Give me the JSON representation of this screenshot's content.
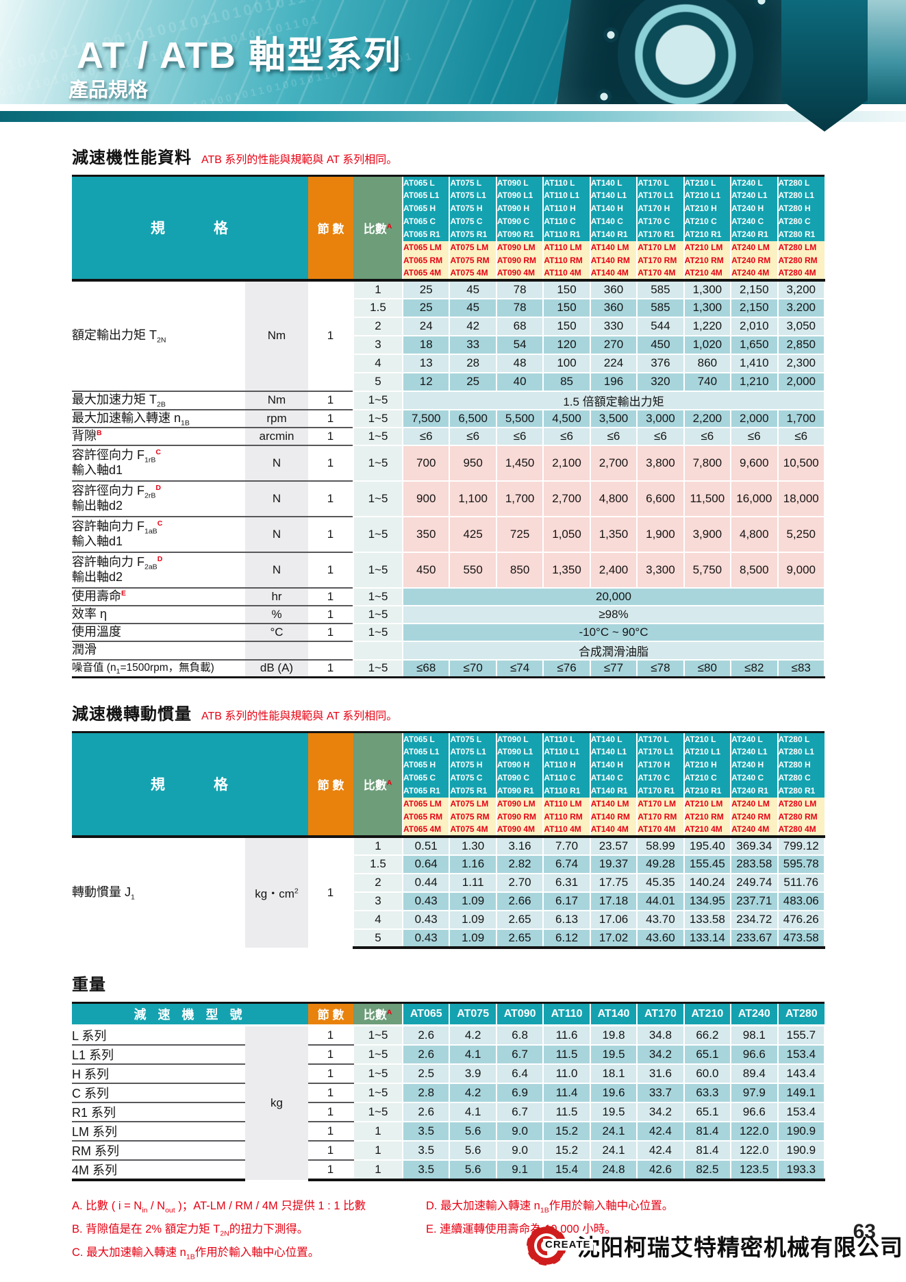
{
  "header": {
    "title": "AT / ATB 軸型系列",
    "subtitle": "產品規格",
    "pattern": "1010010110100101001011010010110100101101"
  },
  "colors": {
    "teal": "#14a2b0",
    "orange": "#e8820d",
    "green": "#6d9d79",
    "yellow": "#fbf1c3",
    "red": "#e60012",
    "row_light": "#d6e9ec",
    "row_dark": "#a8d5dc",
    "row_pink": "#f8dad6"
  },
  "models": [
    "AT065",
    "AT075",
    "AT090",
    "AT110",
    "AT140",
    "AT170",
    "AT210",
    "AT240",
    "AT280"
  ],
  "model_header": {
    "spec_label": "規　　　格",
    "sections_label": "節 數",
    "ratio_label": "比數",
    "ratio_sup": "A",
    "suffix_rows": [
      {
        "suffix": "L",
        "style": "teal"
      },
      {
        "suffix": "L1",
        "style": "teal"
      },
      {
        "suffix": "H",
        "style": "teal"
      },
      {
        "suffix": "C",
        "style": "teal"
      },
      {
        "suffix": "R1",
        "style": "teal"
      },
      {
        "suffix": "LM",
        "style": "yellow"
      },
      {
        "suffix": "RM",
        "style": "yellow"
      },
      {
        "suffix": "4M",
        "style": "yellow"
      }
    ]
  },
  "perf": {
    "title": "減速機性能資料",
    "note": "ATB 系列的性能與規範與 AT 系列相同。",
    "rows": [
      {
        "type": "multi",
        "label": [
          {
            "t": "額定輸出力矩 T"
          },
          {
            "sub": "2N"
          }
        ],
        "unit": "Nm",
        "sections": "1",
        "ratios": [
          "1",
          "1.5",
          "2",
          "3",
          "4",
          "5"
        ],
        "values": [
          [
            "25",
            "45",
            "78",
            "150",
            "360",
            "585",
            "1,300",
            "2,150",
            "3,200"
          ],
          [
            "25",
            "45",
            "78",
            "150",
            "360",
            "585",
            "1,300",
            "2,150",
            "3.200"
          ],
          [
            "24",
            "42",
            "68",
            "150",
            "330",
            "544",
            "1,220",
            "2,010",
            "3,050"
          ],
          [
            "18",
            "33",
            "54",
            "120",
            "270",
            "450",
            "1,020",
            "1,650",
            "2,850"
          ],
          [
            "13",
            "28",
            "48",
            "100",
            "224",
            "376",
            "860",
            "1,410",
            "2,300"
          ],
          [
            "12",
            "25",
            "40",
            "85",
            "196",
            "320",
            "740",
            "1,210",
            "2,000"
          ]
        ]
      },
      {
        "type": "span",
        "label": [
          {
            "t": "最大加速力矩 T"
          },
          {
            "sub": "2B"
          }
        ],
        "unit": "Nm",
        "sections": "1",
        "ratio": "1~5",
        "span": "1.5 倍額定輸出力矩",
        "bg": "light"
      },
      {
        "type": "vals",
        "label": [
          {
            "t": "最大加速輸入轉速 n"
          },
          {
            "sub": "1B"
          }
        ],
        "unit": "rpm",
        "sections": "1",
        "ratio": "1~5",
        "bg": "dark",
        "values": [
          "7,500",
          "6,500",
          "5,500",
          "4,500",
          "3,500",
          "3,000",
          "2,200",
          "2,000",
          "1,700"
        ]
      },
      {
        "type": "vals",
        "label": [
          {
            "t": "背隙"
          },
          {
            "sup": "B"
          }
        ],
        "unit": "arcmin",
        "sections": "1",
        "ratio": "1~5",
        "bg": "light",
        "values": [
          "≤6",
          "≤6",
          "≤6",
          "≤6",
          "≤6",
          "≤6",
          "≤6",
          "≤6",
          "≤6"
        ]
      },
      {
        "type": "vals",
        "label": [
          {
            "t": "容許徑向力 F"
          },
          {
            "sub": "1rB"
          },
          {
            "sup": "C"
          }
        ],
        "label2": "輸入軸d1",
        "unit": "N",
        "sections": "1",
        "ratio": "1~5",
        "bg": "pink",
        "values": [
          "700",
          "950",
          "1,450",
          "2,100",
          "2,700",
          "3,800",
          "7,800",
          "9,600",
          "10,500"
        ]
      },
      {
        "type": "vals",
        "label": [
          {
            "t": "容許徑向力 F"
          },
          {
            "sub": "2rB"
          },
          {
            "sup": "D"
          }
        ],
        "label2": "輸出軸d2",
        "unit": "N",
        "sections": "1",
        "ratio": "1~5",
        "bg": "pink",
        "values": [
          "900",
          "1,100",
          "1,700",
          "2,700",
          "4,800",
          "6,600",
          "11,500",
          "16,000",
          "18,000"
        ]
      },
      {
        "type": "vals",
        "label": [
          {
            "t": "容許軸向力 F"
          },
          {
            "sub": "1aB"
          },
          {
            "sup": "C"
          }
        ],
        "label2": "輸入軸d1",
        "unit": "N",
        "sections": "1",
        "ratio": "1~5",
        "bg": "pink",
        "values": [
          "350",
          "425",
          "725",
          "1,050",
          "1,350",
          "1,900",
          "3,900",
          "4,800",
          "5,250"
        ]
      },
      {
        "type": "vals",
        "label": [
          {
            "t": "容許軸向力 F"
          },
          {
            "sub": "2aB"
          },
          {
            "sup": "D"
          }
        ],
        "label2": "輸出軸d2",
        "unit": "N",
        "sections": "1",
        "ratio": "1~5",
        "bg": "pink",
        "values": [
          "450",
          "550",
          "850",
          "1,350",
          "2,400",
          "3,300",
          "5,750",
          "8,500",
          "9,000"
        ]
      },
      {
        "type": "span",
        "label": [
          {
            "t": "使用壽命"
          },
          {
            "sup": "E"
          }
        ],
        "unit": "hr",
        "sections": "1",
        "ratio": "1~5",
        "span": "20,000",
        "bg": "dark"
      },
      {
        "type": "span",
        "label": [
          {
            "t": "效率 η"
          }
        ],
        "unit": "%",
        "sections": "1",
        "ratio": "1~5",
        "span": "≥98%",
        "bg": "light"
      },
      {
        "type": "span",
        "label": [
          {
            "t": "使用溫度"
          }
        ],
        "unit": "°C",
        "sections": "1",
        "ratio": "1~5",
        "span": "-10°C ~ 90°C",
        "bg": "dark"
      },
      {
        "type": "span",
        "label": [
          {
            "t": "潤滑"
          }
        ],
        "unit": "",
        "sections": "",
        "ratio": "",
        "span": "合成潤滑油脂",
        "bg": "light"
      },
      {
        "type": "vals",
        "label": [
          {
            "t": "噪音值 (n"
          },
          {
            "sub": "1"
          },
          {
            "t": "=1500rpm，無負載)"
          }
        ],
        "small": true,
        "unit": "dB (A)",
        "sections": "1",
        "ratio": "1~5",
        "bg": "dark",
        "values": [
          "≤68",
          "≤70",
          "≤74",
          "≤76",
          "≤77",
          "≤78",
          "≤80",
          "≤82",
          "≤83"
        ]
      }
    ]
  },
  "inertia": {
    "title": "減速機轉動慣量",
    "note": "ATB 系列的性能與規範與 AT 系列相同。",
    "rows": [
      {
        "type": "multi",
        "label": [
          {
            "t": "轉動慣量 J"
          },
          {
            "sub": "1"
          }
        ],
        "unit": [
          {
            "t": "kg・cm"
          },
          {
            "supb": "2"
          }
        ],
        "sections": "1",
        "ratios": [
          "1",
          "1.5",
          "2",
          "3",
          "4",
          "5"
        ],
        "values": [
          [
            "0.51",
            "1.30",
            "3.16",
            "7.70",
            "23.57",
            "58.99",
            "195.40",
            "369.34",
            "799.12"
          ],
          [
            "0.64",
            "1.16",
            "2.82",
            "6.74",
            "19.37",
            "49.28",
            "155.45",
            "283.58",
            "595.78"
          ],
          [
            "0.44",
            "1.11",
            "2.70",
            "6.31",
            "17.75",
            "45.35",
            "140.24",
            "249.74",
            "511.76"
          ],
          [
            "0.43",
            "1.09",
            "2.66",
            "6.17",
            "17.18",
            "44.01",
            "134.95",
            "237.71",
            "483.06"
          ],
          [
            "0.43",
            "1.09",
            "2.65",
            "6.13",
            "17.06",
            "43.70",
            "133.58",
            "234.72",
            "476.26"
          ],
          [
            "0.43",
            "1.09",
            "2.65",
            "6.12",
            "17.02",
            "43.60",
            "133.14",
            "233.67",
            "473.58"
          ]
        ]
      }
    ]
  },
  "weight": {
    "title": "重量",
    "header": {
      "model_label": "減 速 機 型 號",
      "sections_label": "節 數",
      "ratio_label": "比數",
      "ratio_sup": "A"
    },
    "unit": "kg",
    "rows": [
      {
        "label": "L 系列",
        "sections": "1",
        "ratio": "1~5",
        "values": [
          "2.6",
          "4.2",
          "6.8",
          "11.6",
          "19.8",
          "34.8",
          "66.2",
          "98.1",
          "155.7"
        ]
      },
      {
        "label": "L1 系列",
        "sections": "1",
        "ratio": "1~5",
        "values": [
          "2.6",
          "4.1",
          "6.7",
          "11.5",
          "19.5",
          "34.2",
          "65.1",
          "96.6",
          "153.4"
        ]
      },
      {
        "label": "H 系列",
        "sections": "1",
        "ratio": "1~5",
        "values": [
          "2.5",
          "3.9",
          "6.4",
          "11.0",
          "18.1",
          "31.6",
          "60.0",
          "89.4",
          "143.4"
        ]
      },
      {
        "label": "C 系列",
        "sections": "1",
        "ratio": "1~5",
        "values": [
          "2.8",
          "4.2",
          "6.9",
          "11.4",
          "19.6",
          "33.7",
          "63.3",
          "97.9",
          "149.1"
        ]
      },
      {
        "label": "R1 系列",
        "sections": "1",
        "ratio": "1~5",
        "values": [
          "2.6",
          "4.1",
          "6.7",
          "11.5",
          "19.5",
          "34.2",
          "65.1",
          "96.6",
          "153.4"
        ]
      },
      {
        "label": "LM 系列",
        "sections": "1",
        "ratio": "1",
        "values": [
          "3.5",
          "5.6",
          "9.0",
          "15.2",
          "24.1",
          "42.4",
          "81.4",
          "122.0",
          "190.9"
        ]
      },
      {
        "label": "RM 系列",
        "sections": "1",
        "ratio": "1",
        "values": [
          "3.5",
          "5.6",
          "9.0",
          "15.2",
          "24.1",
          "42.4",
          "81.4",
          "122.0",
          "190.9"
        ]
      },
      {
        "label": "4M 系列",
        "sections": "1",
        "ratio": "1",
        "values": [
          "3.5",
          "5.6",
          "9.1",
          "15.4",
          "24.8",
          "42.6",
          "82.5",
          "123.5",
          "193.3"
        ]
      }
    ]
  },
  "footnotes": {
    "left": [
      [
        {
          "t": "A. 比數 ( i = N"
        },
        {
          "sub": "in"
        },
        {
          "t": " / N"
        },
        {
          "sub": "out"
        },
        {
          "t": " )；AT-LM / RM / 4M 只提供 1 : 1 比數"
        }
      ],
      [
        {
          "t": "B. 背隙值是在 2% 額定力矩 T"
        },
        {
          "sub": "2N"
        },
        {
          "t": "的扭力下測得。"
        }
      ],
      [
        {
          "t": "C. 最大加速輸入轉速 n"
        },
        {
          "sub": "1B"
        },
        {
          "t": "作用於輸入軸中心位置。"
        }
      ]
    ],
    "right": [
      [
        {
          "t": "D. 最大加速輸入轉速 n"
        },
        {
          "sub": "1B"
        },
        {
          "t": "作用於輸入軸中心位置。"
        }
      ],
      [
        {
          "t": "E. 連續運轉使用壽命為 10,000 小時。"
        }
      ]
    ]
  },
  "footer": {
    "logo_text": "CREATE",
    "company": "沈阳柯瑞艾特精密机械有限公司",
    "page_number": "63"
  }
}
